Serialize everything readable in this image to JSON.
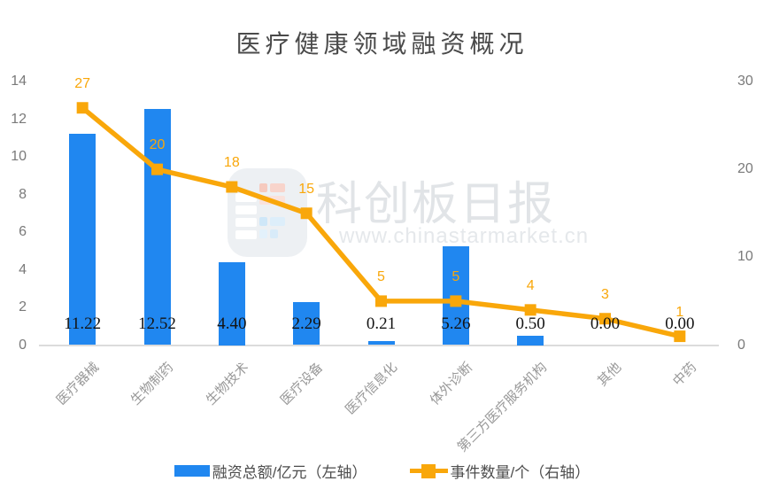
{
  "title": "医疗健康领域融资概况",
  "watermark": {
    "brand": "科创板日报",
    "url": "www.chinastarmarket.cn"
  },
  "colors": {
    "bar": "#2087F0",
    "line": "#F9A70A",
    "bar_label": "#141414",
    "axis_text": "#7a7a7a",
    "category_text": "#999999",
    "title_text": "#4a4a4a"
  },
  "legend": {
    "bar": {
      "label": "融资总额/亿元（左轴）"
    },
    "line": {
      "label": "事件数量/个（右轴）"
    }
  },
  "chart_data": {
    "type": "combo-bar-line",
    "title": "医疗健康领域融资概况",
    "categories": [
      "医疗器械",
      "生物制药",
      "生物技术",
      "医疗设备",
      "医疗信息化",
      "体外诊断",
      "第三方医疗服务机构",
      "其他",
      "中药"
    ],
    "series": [
      {
        "name": "融资总额/亿元（左轴）",
        "type": "bar",
        "axis": "left",
        "color": "#2087F0",
        "values": [
          11.22,
          12.52,
          4.4,
          2.29,
          0.21,
          5.26,
          0.5,
          0.0,
          0.0
        ],
        "labels": [
          "11.22",
          "12.52",
          "4.40",
          "2.29",
          "0.21",
          "5.26",
          "0.50",
          "0.00",
          "0.00"
        ]
      },
      {
        "name": "事件数量/个（右轴）",
        "type": "line",
        "axis": "right",
        "color": "#F9A70A",
        "values": [
          27,
          20,
          18,
          15,
          5,
          5,
          4,
          3,
          1
        ],
        "labels": [
          "27",
          "20",
          "18",
          "15",
          "5",
          "5",
          "4",
          "3",
          "1"
        ]
      }
    ],
    "left_axis": {
      "min": 0,
      "max": 14,
      "ticks": [
        "0",
        "2",
        "4",
        "6",
        "8",
        "10",
        "12",
        "14"
      ]
    },
    "right_axis": {
      "min": 0,
      "max": 30,
      "ticks": [
        "0",
        "10",
        "20",
        "30"
      ]
    },
    "grid": false,
    "legend_position": "bottom"
  }
}
